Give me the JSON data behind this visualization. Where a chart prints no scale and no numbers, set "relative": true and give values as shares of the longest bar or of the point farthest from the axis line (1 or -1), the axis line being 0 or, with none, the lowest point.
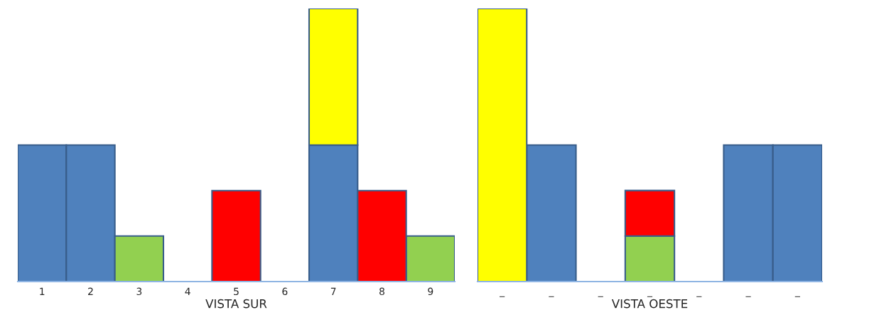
{
  "chart_data": [
    {
      "type": "bar",
      "stacked": true,
      "relative": true,
      "tick_labels": "x",
      "xlabel": "VISTA SUR",
      "categories": [
        "1",
        "2",
        "3",
        "4",
        "5",
        "6",
        "7",
        "8",
        "9"
      ],
      "series": [
        {
          "color": "#4f81bd",
          "values": [
            0.5,
            0.5,
            null,
            null,
            null,
            null,
            0.5,
            null,
            null
          ]
        },
        {
          "color": "#92d050",
          "values": [
            null,
            null,
            0.1667,
            null,
            null,
            null,
            null,
            null,
            0.1667
          ]
        },
        {
          "color": "#ff0000",
          "values": [
            null,
            null,
            null,
            null,
            0.3333,
            null,
            null,
            0.3333,
            null
          ]
        },
        {
          "color": "#ffff00",
          "values": [
            null,
            null,
            null,
            null,
            null,
            null,
            0.5,
            null,
            null
          ]
        }
      ]
    },
    {
      "type": "bar",
      "stacked": true,
      "relative": true,
      "tick_labels": "x",
      "xlabel": "VISTA OESTE",
      "categories": [
        "_",
        "_",
        "_",
        "_",
        "_",
        "_",
        "_"
      ],
      "series": [
        {
          "color": "#4f81bd",
          "values": [
            null,
            0.5,
            null,
            null,
            null,
            0.5,
            0.5
          ]
        },
        {
          "color": "#92d050",
          "values": [
            null,
            null,
            null,
            0.1667,
            null,
            null,
            null
          ]
        },
        {
          "color": "#ff0000",
          "values": [
            null,
            null,
            null,
            0.1667,
            null,
            null,
            null
          ]
        },
        {
          "color": "#ffff00",
          "values": [
            1,
            null,
            null,
            null,
            null,
            null,
            null
          ]
        }
      ]
    }
  ]
}
